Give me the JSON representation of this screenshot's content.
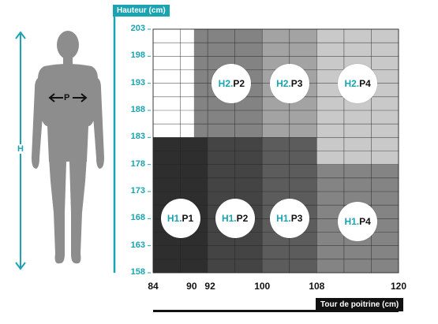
{
  "chart_data": {
    "type": "heatmap",
    "y_axis_badge": "Hauteur (cm)",
    "x_axis_badge": "Tour de poitrine (cm)",
    "yticks": [
      158,
      163,
      168,
      173,
      178,
      183,
      188,
      193,
      198,
      203
    ],
    "xticks": [
      84,
      90,
      92,
      100,
      108,
      120
    ],
    "xlim": [
      84,
      120
    ],
    "ylim": [
      158,
      203
    ],
    "grid": true,
    "zones": [
      {
        "height": "H1",
        "chest": "P1",
        "x": [
          84,
          92
        ],
        "y": [
          158,
          183
        ],
        "color": "#2e2e2e"
      },
      {
        "height": "H1",
        "chest": "P2",
        "x": [
          92,
          100
        ],
        "y": [
          158,
          183
        ],
        "color": "#444444"
      },
      {
        "height": "H1",
        "chest": "P3",
        "x": [
          100,
          108
        ],
        "y": [
          158,
          183
        ],
        "color": "#5c5c5c"
      },
      {
        "height": "H1",
        "chest": "P4",
        "x": [
          108,
          120
        ],
        "y": [
          158,
          178
        ],
        "color": "#848484"
      },
      {
        "height": "H2",
        "chest": "P1",
        "x": [
          84,
          90
        ],
        "y": [
          183,
          203
        ],
        "color": "#ffffff"
      },
      {
        "height": "H2",
        "chest": "P2",
        "x": [
          90,
          100
        ],
        "y": [
          183,
          203
        ],
        "color": "#838383"
      },
      {
        "height": "H2",
        "chest": "P3",
        "x": [
          100,
          108
        ],
        "y": [
          183,
          203
        ],
        "color": "#a3a3a3"
      },
      {
        "height": "H2",
        "chest": "P4",
        "x": [
          108,
          120
        ],
        "y": [
          178,
          203
        ],
        "color": "#c9c9c9"
      }
    ],
    "zone_labels": [
      {
        "h": "H1.",
        "p": "P1",
        "x": 88,
        "y": 168
      },
      {
        "h": "H1.",
        "p": "P2",
        "x": 96,
        "y": 168
      },
      {
        "h": "H1.",
        "p": "P3",
        "x": 104,
        "y": 168
      },
      {
        "h": "H1.",
        "p": "P4",
        "x": 114,
        "y": 167.5
      },
      {
        "h": "H2.",
        "p": "P2",
        "x": 95.5,
        "y": 193
      },
      {
        "h": "H2.",
        "p": "P3",
        "x": 104,
        "y": 193
      },
      {
        "h": "H2.",
        "p": "P4",
        "x": 114,
        "y": 193
      }
    ]
  },
  "figure": {
    "height_label": "H",
    "chest_label": "P"
  },
  "colors": {
    "accent": "#1aa3b0",
    "axis": "#111111",
    "grid": "#222222",
    "silhouette": "#8d8d8d"
  }
}
